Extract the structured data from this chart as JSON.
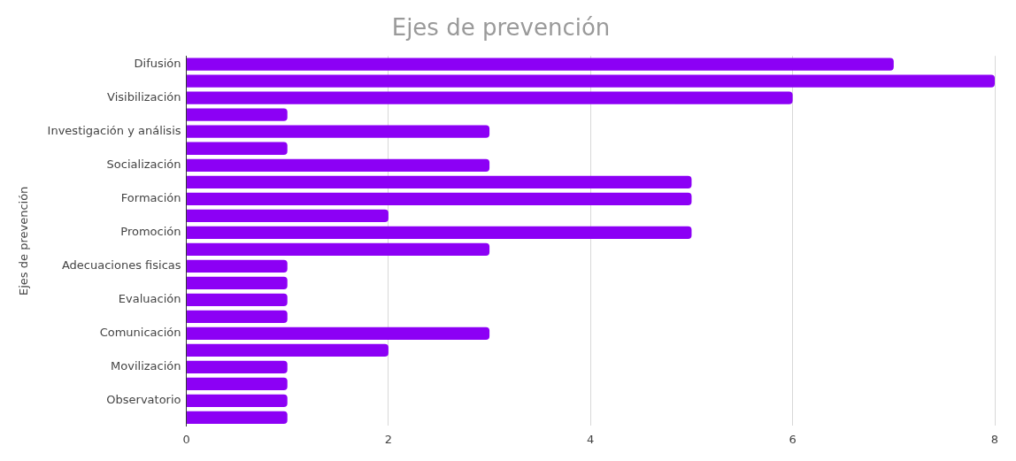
{
  "chart_data": {
    "type": "bar",
    "orientation": "horizontal",
    "title": "Ejes de prevención",
    "ylabel": "Ejes de prevención",
    "categories": [
      "Difusión",
      null,
      "Visibilización",
      null,
      "Investigación y análisis",
      null,
      "Socialización",
      null,
      "Formación",
      null,
      "Promoción",
      null,
      "Adecuaciones fisicas",
      null,
      "Evaluación",
      null,
      "Comunicación",
      null,
      "Movilización",
      null,
      "Observatorio",
      null
    ],
    "values": [
      7,
      8,
      6,
      1,
      3,
      1,
      3,
      5,
      5,
      2,
      5,
      3,
      1,
      1,
      1,
      1,
      3,
      2,
      1,
      1,
      1,
      1
    ],
    "color": "#8c00f5",
    "xlim": [
      0,
      8
    ],
    "xticks": [
      0,
      2,
      4,
      6,
      8
    ],
    "grid": "x",
    "legend": false
  }
}
